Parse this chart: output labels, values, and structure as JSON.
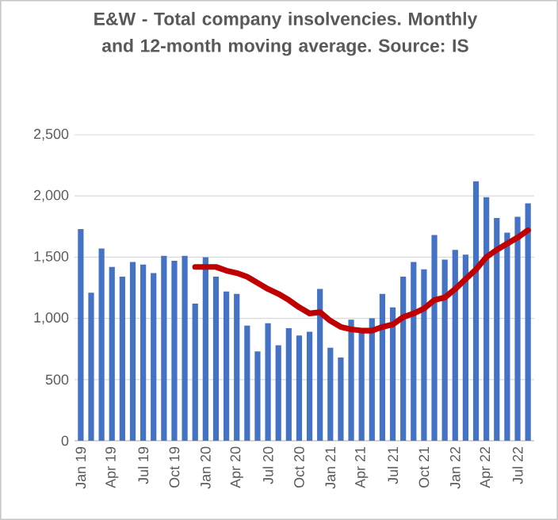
{
  "chart_data": {
    "type": "bar",
    "title": "E&W - Total company insolvencies. Monthly and 12-month moving average. Source: IS",
    "categories": [
      "Jan 19",
      null,
      null,
      "Apr 19",
      null,
      null,
      "Jul 19",
      null,
      null,
      "Oct 19",
      null,
      null,
      "Jan 20",
      null,
      null,
      "Apr 20",
      null,
      null,
      "Jul 20",
      null,
      null,
      "Oct 20",
      null,
      null,
      "Jan 21",
      null,
      null,
      "Apr 21",
      null,
      null,
      "Jul 21",
      null,
      null,
      "Oct 21",
      null,
      null,
      "Jan 22",
      null,
      null,
      "Apr 22",
      null,
      null,
      "Jul 22",
      null
    ],
    "series": [
      {
        "color": "#4472c4",
        "values": [
          1730,
          1210,
          1570,
          1420,
          1340,
          1460,
          1440,
          1370,
          1510,
          1470,
          1510,
          1120,
          1500,
          1340,
          1220,
          1200,
          940,
          730,
          960,
          780,
          920,
          860,
          890,
          1240,
          760,
          680,
          990,
          910,
          1000,
          1200,
          1090,
          1340,
          1460,
          1400,
          1680,
          1480,
          1560,
          1520,
          2120,
          1990,
          1820,
          1700,
          1830,
          1940
        ]
      },
      {
        "type": "line",
        "color": "#c00000",
        "values": [
          null,
          null,
          null,
          null,
          null,
          null,
          null,
          null,
          null,
          null,
          null,
          1420,
          1420,
          1420,
          1390,
          1370,
          1340,
          1290,
          1240,
          1200,
          1150,
          1090,
          1040,
          1050,
          980,
          930,
          910,
          900,
          900,
          930,
          950,
          1010,
          1040,
          1080,
          1150,
          1170,
          1240,
          1320,
          1400,
          1500,
          1560,
          1610,
          1660,
          1720
        ]
      }
    ],
    "ylim": [
      0,
      2500
    ],
    "yticks": [
      0,
      500,
      {
        "value": 1000,
        "label": "1,000"
      },
      {
        "value": 1500,
        "label": "1,500"
      },
      {
        "value": 2000,
        "label": "2,000"
      },
      {
        "value": 2500,
        "label": "2,500"
      }
    ],
    "grid": "y"
  }
}
